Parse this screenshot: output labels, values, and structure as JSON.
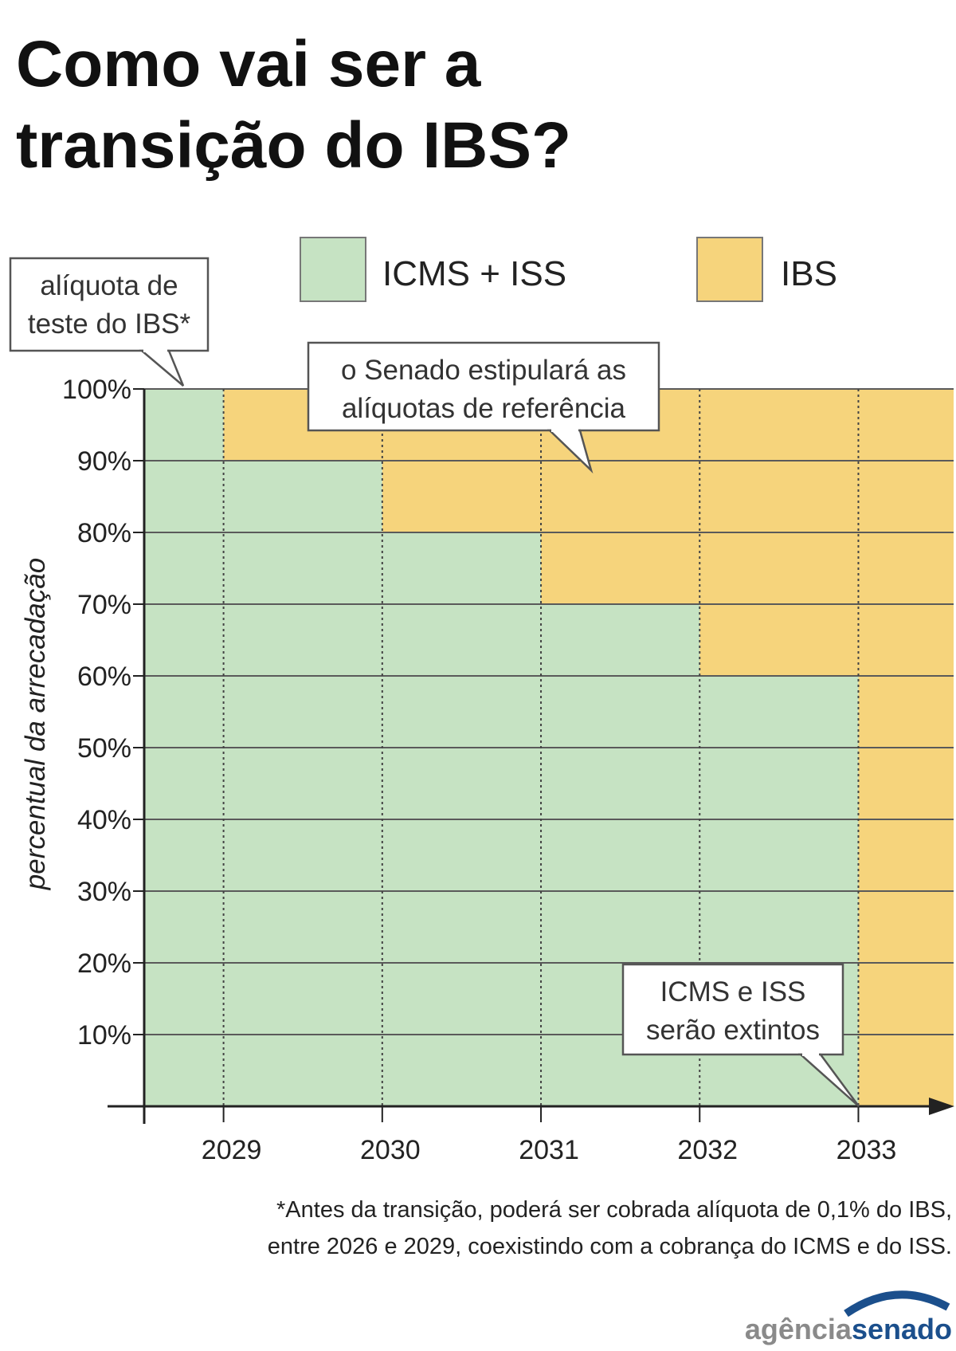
{
  "chart_data": {
    "type": "step-area",
    "title": [
      "Como vai ser a",
      "transição do IBS?"
    ],
    "ylabel": "percentual da arrecadação",
    "x": [
      2028.5,
      2029,
      2030,
      2031,
      2032,
      2033
    ],
    "xlim": [
      2028.5,
      2033.6
    ],
    "xticks": [
      2029,
      2030,
      2031,
      2032,
      2033
    ],
    "ylim": [
      0,
      100
    ],
    "yticks": [
      {
        "value": 10,
        "label": "10%"
      },
      {
        "value": 20,
        "label": "20%"
      },
      {
        "value": 30,
        "label": "30%"
      },
      {
        "value": 40,
        "label": "40%"
      },
      {
        "value": 50,
        "label": "50%"
      },
      {
        "value": 60,
        "label": "60%"
      },
      {
        "value": 70,
        "label": "70%"
      },
      {
        "value": 80,
        "label": "80%"
      },
      {
        "value": 90,
        "label": "90%"
      },
      {
        "value": 100,
        "label": "100%"
      }
    ],
    "stacked": true,
    "grid": true,
    "series": [
      {
        "name": "ICMS + ISS",
        "color": "#c6e3c3",
        "values": [
          99.9,
          90,
          80,
          70,
          60,
          0
        ]
      },
      {
        "name": "IBS",
        "color": "#f6d47c",
        "values": [
          0.1,
          10,
          20,
          30,
          40,
          100
        ]
      }
    ],
    "annotations": [
      [
        "alíquota de",
        "teste do IBS*"
      ],
      [
        "o Senado estipulará as",
        "alíquotas de referência"
      ],
      [
        "ICMS e ISS",
        "serão extintos"
      ]
    ],
    "footnote": [
      "*Antes da transição, poderá ser cobrada alíquota de 0,1% do IBS,",
      "entre 2026 e 2029, coexistindo com a cobrança do ICMS e do ISS."
    ],
    "source": [
      "agência",
      "senado"
    ]
  }
}
